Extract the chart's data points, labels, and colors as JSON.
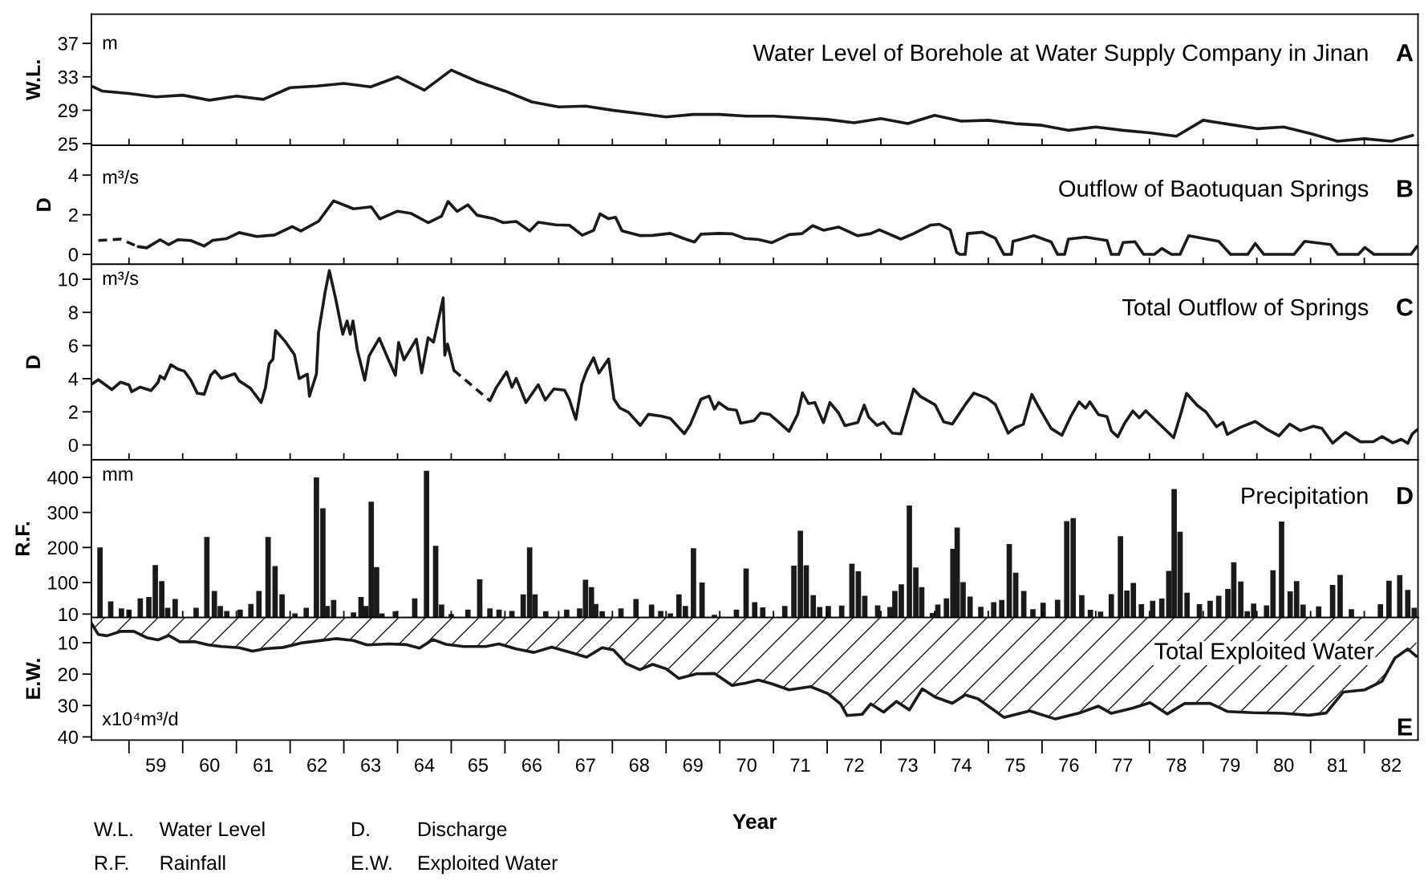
{
  "chart_data": [
    {
      "type": "line",
      "title": "Water Level of Borehole at Water Supply Company in Jinan",
      "ylabel": "W.L.",
      "annotations": [
        "m",
        "A"
      ],
      "xlim": [
        57.8,
        82.5
      ],
      "ylim": [
        24.8,
        40.5
      ],
      "yticks": [
        25,
        29,
        33,
        37
      ],
      "tick_labels": "y",
      "grid": false,
      "line_style": "solid",
      "marker": "none",
      "xticks": [
        {
          "value": 58.5,
          "label": null
        },
        59,
        {
          "value": 59.5,
          "label": null
        },
        60,
        {
          "value": 60.5,
          "label": null
        },
        61,
        {
          "value": 61.5,
          "label": null
        },
        62,
        {
          "value": 62.5,
          "label": null
        },
        63,
        {
          "value": 63.5,
          "label": null
        },
        64,
        {
          "value": 64.5,
          "label": null
        },
        65,
        {
          "value": 65.5,
          "label": null
        },
        66,
        {
          "value": 66.5,
          "label": null
        },
        67,
        {
          "value": 67.5,
          "label": null
        },
        68,
        {
          "value": 68.5,
          "label": null
        },
        69,
        {
          "value": 69.5,
          "label": null
        },
        70,
        {
          "value": 70.5,
          "label": null
        },
        71,
        {
          "value": 71.5,
          "label": null
        },
        72,
        {
          "value": 72.5,
          "label": null
        },
        73,
        {
          "value": 73.5,
          "label": null
        },
        74,
        {
          "value": 74.5,
          "label": null
        },
        75,
        {
          "value": 75.5,
          "label": null
        },
        76,
        {
          "value": 76.5,
          "label": null
        },
        77,
        {
          "value": 77.5,
          "label": null
        },
        78,
        {
          "value": 78.5,
          "label": null
        },
        79,
        {
          "value": 79.5,
          "label": null
        },
        80,
        {
          "value": 80.5,
          "label": null
        },
        81,
        {
          "value": 81.5,
          "label": null
        },
        82
      ],
      "series": [
        {
          "color": "#1a1a1a",
          "x": [
            57.83,
            58.0,
            58.5,
            59.0,
            59.5,
            60.0,
            60.5,
            61.0,
            61.5,
            62.0,
            62.5,
            63.0,
            63.5,
            64.0,
            64.5,
            65.0,
            65.5,
            66.0,
            66.5,
            67.0,
            67.5,
            68.0,
            68.5,
            69.0,
            69.5,
            70.0,
            70.5,
            71.0,
            71.5,
            72.0,
            72.5,
            73.0,
            73.5,
            74.0,
            74.5,
            75.0,
            75.5,
            76.0,
            76.5,
            77.0,
            77.5,
            78.0,
            78.5,
            79.0,
            79.5,
            80.0,
            80.5,
            81.0,
            81.5,
            82.0,
            82.4
          ],
          "values": [
            31.8,
            31.3,
            31.0,
            30.6,
            30.8,
            30.2,
            30.7,
            30.3,
            31.7,
            31.9,
            32.2,
            31.8,
            33.0,
            31.4,
            33.8,
            32.4,
            31.3,
            30.0,
            29.4,
            29.5,
            29.0,
            28.6,
            28.2,
            28.5,
            28.5,
            28.3,
            28.3,
            28.1,
            27.9,
            27.5,
            28.0,
            27.4,
            28.4,
            27.7,
            27.8,
            27.4,
            27.2,
            26.6,
            27.0,
            26.6,
            26.3,
            25.9,
            27.8,
            27.3,
            26.8,
            27.0,
            26.2,
            25.3,
            25.6,
            25.3,
            26.0
          ]
        }
      ]
    },
    {
      "type": "line",
      "title": "Outflow of Baotuquan Springs",
      "ylabel": "D",
      "annotations": [
        "m³/s",
        "B"
      ],
      "xlim": [
        57.8,
        82.5
      ],
      "ylim": [
        -0.5,
        5.5
      ],
      "yticks": [
        0,
        2,
        4
      ],
      "tick_labels": "y",
      "grid": false,
      "line_style": "solid",
      "marker": "none",
      "xticks": [
        {
          "value": 58.5,
          "label": null
        },
        59,
        {
          "value": 59.5,
          "label": null
        },
        60,
        {
          "value": 60.5,
          "label": null
        },
        61,
        {
          "value": 61.5,
          "label": null
        },
        62,
        {
          "value": 62.5,
          "label": null
        },
        63,
        {
          "value": 63.5,
          "label": null
        },
        64,
        {
          "value": 64.5,
          "label": null
        },
        65,
        {
          "value": 65.5,
          "label": null
        },
        66,
        {
          "value": 66.5,
          "label": null
        },
        67,
        {
          "value": 67.5,
          "label": null
        },
        68,
        {
          "value": 68.5,
          "label": null
        },
        69,
        {
          "value": 69.5,
          "label": null
        },
        70,
        {
          "value": 70.5,
          "label": null
        },
        71,
        {
          "value": 71.5,
          "label": null
        },
        72,
        {
          "value": 72.5,
          "label": null
        },
        73,
        {
          "value": 73.5,
          "label": null
        },
        74,
        {
          "value": 74.5,
          "label": null
        },
        75,
        {
          "value": 75.5,
          "label": null
        },
        76,
        {
          "value": 76.5,
          "label": null
        },
        77,
        {
          "value": 77.5,
          "label": null
        },
        78,
        {
          "value": 78.5,
          "label": null
        },
        79,
        {
          "value": 79.5,
          "label": null
        },
        80,
        {
          "value": 80.5,
          "label": null
        },
        81,
        {
          "value": 81.5,
          "label": null
        },
        82
      ],
      "series": [
        {
          "color": "#1a1a1a",
          "line_style": "dashed",
          "x": [
            57.93,
            58.34,
            58.67
          ],
          "values": [
            0.7,
            0.77,
            0.39
          ]
        },
        {
          "color": "#1a1a1a",
          "x": [
            58.67,
            58.83,
            59.08,
            59.24,
            59.41,
            59.65,
            59.9,
            60.06,
            60.31,
            60.55,
            60.88,
            61.21,
            61.54,
            61.7,
            62.03,
            62.31,
            62.68,
            63.01,
            63.17,
            63.5,
            63.75,
            64.07,
            64.32,
            64.44,
            64.61,
            64.81,
            64.98,
            65.3,
            65.47,
            65.71,
            65.96,
            66.12,
            66.45,
            66.7,
            66.94,
            67.15,
            67.27,
            67.43,
            67.56,
            67.68,
            68.01,
            68.25,
            68.58,
            68.83,
            69.03,
            69.15,
            69.48,
            69.73,
            69.97,
            70.22,
            70.47,
            70.79,
            71.03,
            71.23,
            71.43,
            71.71,
            72.07,
            72.31,
            72.47,
            72.87,
            73.11,
            73.43,
            73.59,
            73.79,
            73.91,
            73.97,
            74.07,
            74.11,
            74.39,
            74.63,
            74.79,
            74.93,
            74.96,
            75.35,
            75.67,
            75.79,
            75.92,
            75.99,
            76.31,
            76.71,
            76.79,
            76.93,
            77.01,
            77.23,
            77.39,
            77.59,
            77.73,
            77.91,
            78.07,
            78.23,
            78.79,
            79.01,
            79.33,
            79.47,
            79.63,
            80.19,
            80.39,
            80.87,
            81.01,
            81.39,
            81.51,
            81.68,
            82.37,
            82.48
          ],
          "values": [
            0.39,
            0.33,
            0.74,
            0.49,
            0.74,
            0.7,
            0.42,
            0.71,
            0.79,
            1.1,
            0.9,
            0.98,
            1.4,
            1.18,
            1.67,
            2.7,
            2.3,
            2.4,
            1.79,
            2.18,
            2.07,
            1.6,
            1.93,
            2.67,
            2.17,
            2.5,
            1.98,
            1.79,
            1.6,
            1.66,
            1.18,
            1.62,
            1.49,
            1.47,
            0.97,
            1.21,
            2.04,
            1.8,
            1.87,
            1.19,
            0.95,
            0.96,
            1.06,
            0.8,
            0.62,
            1.02,
            1.06,
            1.04,
            0.8,
            0.75,
            0.59,
            1.0,
            1.05,
            1.45,
            1.22,
            1.38,
            0.94,
            1.05,
            1.24,
            0.77,
            1.05,
            1.48,
            1.52,
            1.24,
            0.1,
            0,
            0,
            1.05,
            1.12,
            0.82,
            0,
            0,
            0.66,
            0.94,
            0.63,
            0,
            0,
            0.77,
            0.87,
            0.7,
            0,
            0,
            0.6,
            0.64,
            0,
            0,
            0.3,
            0,
            0,
            0.94,
            0.66,
            0,
            0,
            0.55,
            0,
            0,
            0.66,
            0.5,
            0,
            0,
            0.35,
            0,
            0,
            0.4
          ]
        }
      ]
    },
    {
      "type": "line",
      "title": "Total Outflow of Springs",
      "ylabel": "D",
      "annotations": [
        "m³/s",
        "C"
      ],
      "xlim": [
        57.8,
        82.5
      ],
      "ylim": [
        -0.9,
        10.9
      ],
      "yticks": [
        0,
        2,
        4,
        6,
        8,
        10
      ],
      "tick_labels": "y",
      "grid": false,
      "line_style": "solid",
      "marker": "none",
      "xticks": [
        {
          "value": 58.5,
          "label": null
        },
        59,
        {
          "value": 59.5,
          "label": null
        },
        60,
        {
          "value": 60.5,
          "label": null
        },
        61,
        {
          "value": 61.5,
          "label": null
        },
        62,
        {
          "value": 62.5,
          "label": null
        },
        63,
        {
          "value": 63.5,
          "label": null
        },
        64,
        {
          "value": 64.5,
          "label": null
        },
        65,
        {
          "value": 65.5,
          "label": null
        },
        66,
        {
          "value": 66.5,
          "label": null
        },
        67,
        {
          "value": 67.5,
          "label": null
        },
        68,
        {
          "value": 68.5,
          "label": null
        },
        69,
        {
          "value": 69.5,
          "label": null
        },
        70,
        {
          "value": 70.5,
          "label": null
        },
        71,
        {
          "value": 71.5,
          "label": null
        },
        72,
        {
          "value": 72.5,
          "label": null
        },
        73,
        {
          "value": 73.5,
          "label": null
        },
        74,
        {
          "value": 74.5,
          "label": null
        },
        75,
        {
          "value": 75.5,
          "label": null
        },
        76,
        {
          "value": 76.5,
          "label": null
        },
        77,
        {
          "value": 77.5,
          "label": null
        },
        78,
        {
          "value": 78.5,
          "label": null
        },
        79,
        {
          "value": 79.5,
          "label": null
        },
        80,
        {
          "value": 80.5,
          "label": null
        },
        81,
        {
          "value": 81.5,
          "label": null
        },
        82
      ],
      "series": [
        {
          "color": "#1a1a1a",
          "x": [
            57.8,
            57.93,
            58.18,
            58.34,
            58.5,
            58.55,
            58.71,
            58.91,
            59.04,
            59.08,
            59.16,
            59.28,
            59.41,
            59.53,
            59.65,
            59.77,
            59.9,
            60.02,
            60.1,
            60.22,
            60.47,
            60.55,
            60.76,
            60.96,
            61.04,
            61.11,
            61.18,
            61.23,
            61.41,
            61.58,
            61.67,
            61.82,
            61.86,
            61.99,
            62.03,
            62.15,
            62.23,
            62.35,
            62.48,
            62.56,
            62.62,
            62.67,
            62.75,
            62.89,
            62.97,
            63.16,
            63.3,
            63.46,
            63.52,
            63.62,
            63.85,
            63.95,
            64.07,
            64.17,
            64.35,
            64.38,
            64.43,
            64.55
          ],
          "values": [
            3.66,
            3.94,
            3.34,
            3.79,
            3.62,
            3.22,
            3.49,
            3.28,
            3.77,
            4.16,
            3.98,
            4.84,
            4.58,
            4.45,
            3.92,
            3.13,
            3.06,
            4.2,
            4.47,
            4.02,
            4.3,
            3.87,
            3.43,
            2.56,
            3.44,
            4.9,
            5.17,
            6.9,
            6.24,
            5.45,
            4.0,
            4.27,
            2.94,
            4.28,
            6.8,
            9.19,
            10.52,
            8.8,
            6.68,
            7.48,
            6.68,
            7.48,
            5.76,
            3.91,
            5.37,
            6.44,
            5.38,
            4.2,
            6.19,
            5.13,
            6.39,
            4.35,
            6.47,
            6.21,
            8.87,
            5.42,
            6.09,
            4.5
          ]
        },
        {
          "color": "#1a1a1a",
          "line_style": "dashed",
          "x": [
            64.55,
            65.22
          ],
          "values": [
            4.5,
            2.67
          ]
        },
        {
          "color": "#1a1a1a",
          "x": [
            65.22,
            65.34,
            65.53,
            65.63,
            65.71,
            65.89,
            66.12,
            66.25,
            66.41,
            66.61,
            66.7,
            66.82,
            66.93,
            67.02,
            67.15,
            67.25,
            67.43,
            67.53,
            67.64,
            67.8,
            68.02,
            68.17,
            68.42,
            68.58,
            68.84,
            68.95,
            69.15,
            69.3,
            69.4,
            69.48,
            69.65,
            69.81,
            69.89,
            70.14,
            70.26,
            70.43,
            70.55,
            70.79,
            70.95,
            71.04,
            71.15,
            71.27,
            71.43,
            71.55,
            71.71,
            71.83,
            72.07,
            72.19,
            72.27,
            72.43,
            72.55,
            72.71,
            72.87,
            72.99,
            73.11,
            73.23,
            73.51,
            73.67,
            73.83,
            74.07,
            74.23,
            74.47,
            74.63,
            74.87,
            74.99,
            75.15,
            75.31,
            75.43,
            75.67,
            75.87,
            76.03,
            76.19,
            76.31,
            76.39,
            76.55,
            76.71,
            76.79,
            76.91,
            77.03,
            77.19,
            77.31,
            77.43,
            77.95,
            78.07,
            78.19,
            78.39,
            78.55,
            78.75,
            78.87,
            78.95,
            79.19,
            79.47,
            79.67,
            79.91,
            80.11,
            80.31,
            80.55,
            80.71,
            80.91,
            81.15,
            81.43,
            81.67,
            81.83,
            82.03,
            82.19,
            82.31,
            82.39,
            82.48
          ],
          "values": [
            2.67,
            3.47,
            4.41,
            3.48,
            4.02,
            2.56,
            3.63,
            2.71,
            3.38,
            3.31,
            2.73,
            1.54,
            3.66,
            4.46,
            5.26,
            4.34,
            5.19,
            2.76,
            2.23,
            1.97,
            1.18,
            1.85,
            1.73,
            1.6,
            0.68,
            1.22,
            2.76,
            2.95,
            2.16,
            2.56,
            2.17,
            2.1,
            1.31,
            1.47,
            1.93,
            1.84,
            1.51,
            0.82,
            1.85,
            3.15,
            2.5,
            2.56,
            1.35,
            2.56,
            1.94,
            1.17,
            1.36,
            2.4,
            1.7,
            1.18,
            1.37,
            0.72,
            0.67,
            2.02,
            3.37,
            2.94,
            2.42,
            1.39,
            1.26,
            2.43,
            3.13,
            2.83,
            2.45,
            0.71,
            1.03,
            1.24,
            3.05,
            2.33,
            0.99,
            0.58,
            1.69,
            2.6,
            2.22,
            2.61,
            1.83,
            1.71,
            0.85,
            0.49,
            1.27,
            2.05,
            1.64,
            2.06,
            0.44,
            1.73,
            3.11,
            2.39,
            2.0,
            1.1,
            1.36,
            0.64,
            1.06,
            1.42,
            0.98,
            0.55,
            1.26,
            0.87,
            1.13,
            1.01,
            0.11,
            0.76,
            0.19,
            0.2,
            0.51,
            0.13,
            0.34,
            0.1,
            0.65,
            0.91
          ]
        }
      ]
    },
    {
      "type": "bar",
      "title": "Precipitation",
      "ylabel": "R.F.",
      "annotations": [
        "mm",
        "D"
      ],
      "xlim": [
        57.8,
        82.5
      ],
      "ylim": [
        0,
        450
      ],
      "yticks": [
        10,
        100,
        200,
        300,
        400
      ],
      "tick_labels": "y",
      "grid": false,
      "xticks": [
        {
          "value": 58.5,
          "label": null
        },
        59,
        {
          "value": 59.5,
          "label": null
        },
        60,
        {
          "value": 60.5,
          "label": null
        },
        61,
        {
          "value": 61.5,
          "label": null
        },
        62,
        {
          "value": 62.5,
          "label": null
        },
        63,
        {
          "value": 63.5,
          "label": null
        },
        64,
        {
          "value": 64.5,
          "label": null
        },
        65,
        {
          "value": 65.5,
          "label": null
        },
        66,
        {
          "value": 66.5,
          "label": null
        },
        67,
        {
          "value": 67.5,
          "label": null
        },
        68,
        {
          "value": 68.5,
          "label": null
        },
        69,
        {
          "value": 69.5,
          "label": null
        },
        70,
        {
          "value": 70.5,
          "label": null
        },
        71,
        {
          "value": 71.5,
          "label": null
        },
        72,
        {
          "value": 72.5,
          "label": null
        },
        73,
        {
          "value": 73.5,
          "label": null
        },
        74,
        {
          "value": 74.5,
          "label": null
        },
        75,
        {
          "value": 75.5,
          "label": null
        },
        76,
        {
          "value": 76.5,
          "label": null
        },
        77,
        {
          "value": 77.5,
          "label": null
        },
        78,
        {
          "value": 78.5,
          "label": null
        },
        79,
        {
          "value": 79.5,
          "label": null
        },
        80,
        {
          "value": 80.5,
          "label": null
        },
        81,
        {
          "value": 81.5,
          "label": null
        },
        82
      ],
      "series": [
        {
          "color": "#1a1a1a",
          "x": [
            57.96,
            58.16,
            58.36,
            58.5,
            58.71,
            58.87,
            58.99,
            59.11,
            59.22,
            59.36,
            59.75,
            59.95,
            60.09,
            60.2,
            60.32,
            60.57,
            60.77,
            60.92,
            61.09,
            61.22,
            61.35,
            61.59,
            61.8,
            61.99,
            62.11,
            62.19,
            62.31,
            62.68,
            62.82,
            62.91,
            63.01,
            63.11,
            63.21,
            63.46,
            63.82,
            64.04,
            64.21,
            64.32,
            64.5,
            64.81,
            65.03,
            65.22,
            65.39,
            65.63,
            65.84,
            65.96,
            66.06,
            66.26,
            66.65,
            66.89,
            67.0,
            67.11,
            67.19,
            67.31,
            67.66,
            67.94,
            68.23,
            68.4,
            68.58,
            68.74,
            68.86,
            69.01,
            69.17,
            69.4,
            69.81,
            69.99,
            70.15,
            70.3,
            70.71,
            70.88,
            71.0,
            71.11,
            71.24,
            71.36,
            71.52,
            71.77,
            71.96,
            72.08,
            72.2,
            72.44,
            72.67,
            72.76,
            72.88,
            73.03,
            73.15,
            73.26,
            73.46,
            73.56,
            73.72,
            73.84,
            73.92,
            74.03,
            74.16,
            74.36,
            74.6,
            74.75,
            74.89,
            75.01,
            75.16,
            75.33,
            75.52,
            75.79,
            75.96,
            76.08,
            76.24,
            76.4,
            76.59,
            76.79,
            76.96,
            77.08,
            77.2,
            77.35,
            77.56,
            77.73,
            77.86,
            77.96,
            78.07,
            78.2,
            78.43,
            78.63,
            78.79,
            78.96,
            79.07,
            79.2,
            79.32,
            79.44,
            79.68,
            79.8,
            79.96,
            80.12,
            80.24,
            80.36,
            80.65,
            80.91,
            81.05,
            81.26,
            81.8,
            81.96,
            82.16,
            82.31,
            82.43
          ],
          "values": [
            200,
            46,
            26,
            23,
            55,
            59,
            150,
            104,
            28,
            53,
            28,
            230,
            76,
            33,
            19,
            23,
            39,
            76,
            230,
            147,
            66,
            12,
            28,
            400,
            312,
            33,
            50,
            15,
            59,
            33,
            331,
            144,
            12,
            18,
            55,
            419,
            205,
            37,
            10,
            23,
            109,
            26,
            23,
            19,
            66,
            200,
            66,
            18,
            23,
            26,
            108,
            87,
            39,
            18,
            26,
            53,
            37,
            19,
            12,
            66,
            33,
            198,
            100,
            8,
            23,
            140,
            44,
            29,
            33,
            148,
            248,
            149,
            64,
            30,
            33,
            34,
            154,
            132,
            62,
            35,
            30,
            76,
            95,
            320,
            143,
            87,
            13,
            37,
            55,
            196,
            257,
            101,
            60,
            31,
            44,
            50,
            210,
            128,
            76,
            24,
            42,
            51,
            275,
            284,
            64,
            22,
            17,
            67,
            232,
            77,
            99,
            38,
            48,
            54,
            133,
            367,
            245,
            71,
            38,
            48,
            62,
            82,
            158,
            103,
            18,
            40,
            35,
            135,
            274,
            75,
            104,
            37,
            32,
            93,
            122,
            24,
            38,
            105,
            121,
            79,
            28
          ]
        }
      ]
    },
    {
      "type": "area",
      "title": "Total Exploited Water",
      "ylabel": "E.W.",
      "xlabel": "Year",
      "annotations": [
        "x10⁴m³/d",
        "E",
        "W.L.",
        "Water Level",
        "D.",
        "Discharge",
        "R.F.",
        "Rainfall",
        "E.W.",
        "Exploited Water"
      ],
      "xlim": [
        57.8,
        82.5
      ],
      "ylim": [
        41,
        2
      ],
      "yticks": [
        10,
        20,
        30,
        40
      ],
      "xticks": [
        {
          "value": 58.5,
          "label": null
        },
        59,
        {
          "value": 59.5,
          "label": null
        },
        60,
        {
          "value": 60.5,
          "label": null
        },
        61,
        {
          "value": 61.5,
          "label": null
        },
        62,
        {
          "value": 62.5,
          "label": null
        },
        63,
        {
          "value": 63.5,
          "label": null
        },
        64,
        {
          "value": 64.5,
          "label": null
        },
        65,
        {
          "value": 65.5,
          "label": null
        },
        66,
        {
          "value": 66.5,
          "label": null
        },
        67,
        {
          "value": 67.5,
          "label": null
        },
        68,
        {
          "value": 68.5,
          "label": null
        },
        69,
        {
          "value": 69.5,
          "label": null
        },
        70,
        {
          "value": 70.5,
          "label": null
        },
        71,
        {
          "value": 71.5,
          "label": null
        },
        72,
        {
          "value": 72.5,
          "label": null
        },
        73,
        {
          "value": 73.5,
          "label": null
        },
        74,
        {
          "value": 74.5,
          "label": null
        },
        75,
        {
          "value": 75.5,
          "label": null
        },
        76,
        {
          "value": 76.5,
          "label": null
        },
        77,
        {
          "value": 77.5,
          "label": null
        },
        78,
        {
          "value": 78.5,
          "label": null
        },
        79,
        {
          "value": 79.5,
          "label": null
        },
        80,
        {
          "value": 80.5,
          "label": null
        },
        81,
        {
          "value": 81.5,
          "label": null
        },
        82
      ],
      "grid": false,
      "line_style": "solid",
      "marker": "none",
      "series": [
        {
          "color": "#1a1a1a",
          "x": [
            57.8,
            57.93,
            58.09,
            58.34,
            58.59,
            58.83,
            59.04,
            59.24,
            59.45,
            59.73,
            59.98,
            60.22,
            60.55,
            60.8,
            61.04,
            61.37,
            61.7,
            62.03,
            62.35,
            62.68,
            62.93,
            63.34,
            63.66,
            63.91,
            64.16,
            64.4,
            64.73,
            65.14,
            65.39,
            65.71,
            66.04,
            66.37,
            66.7,
            67.02,
            67.31,
            67.52,
            67.76,
            68.01,
            68.25,
            68.5,
            68.74,
            69.07,
            69.4,
            69.73,
            69.97,
            70.22,
            70.47,
            70.79,
            71.19,
            71.51,
            71.75,
            71.87,
            72.15,
            72.31,
            72.55,
            72.79,
            73.03,
            73.27,
            73.51,
            73.83,
            74.07,
            74.31,
            74.63,
            74.79,
            75.27,
            75.75,
            76.23,
            76.55,
            76.79,
            77.19,
            77.51,
            77.83,
            78.15,
            78.63,
            78.95,
            79.43,
            79.99,
            80.47,
            80.79,
            81.11,
            81.51,
            81.83,
            82.07,
            82.31,
            82.47
          ],
          "values": [
            3.8,
            7.4,
            7.8,
            6.4,
            6.4,
            8.4,
            9.1,
            7.7,
            9.7,
            9.7,
            10.7,
            11.2,
            11.6,
            12.7,
            11.9,
            11.5,
            10.1,
            9.4,
            8.7,
            9.3,
            10.7,
            10.4,
            10.6,
            11.7,
            9.0,
            10.5,
            11.2,
            11.2,
            10.4,
            12.0,
            13.1,
            11.4,
            13.0,
            14.6,
            11.6,
            12.3,
            16.7,
            18.6,
            16.9,
            18.3,
            21.4,
            19.9,
            19.8,
            23.6,
            22.9,
            21.9,
            23.1,
            25.0,
            24.0,
            26.2,
            29.5,
            33.2,
            32.8,
            29.5,
            32.1,
            28.7,
            31.4,
            24.7,
            27.3,
            29.3,
            26.6,
            27.9,
            31.8,
            33.8,
            31.7,
            34.3,
            32.2,
            30.2,
            32.5,
            30.8,
            29.1,
            32.7,
            29.4,
            29.3,
            31.9,
            32.3,
            32.5,
            33.1,
            32.4,
            25.7,
            25.0,
            22.3,
            14.9,
            12.0,
            14.3
          ]
        }
      ]
    }
  ]
}
